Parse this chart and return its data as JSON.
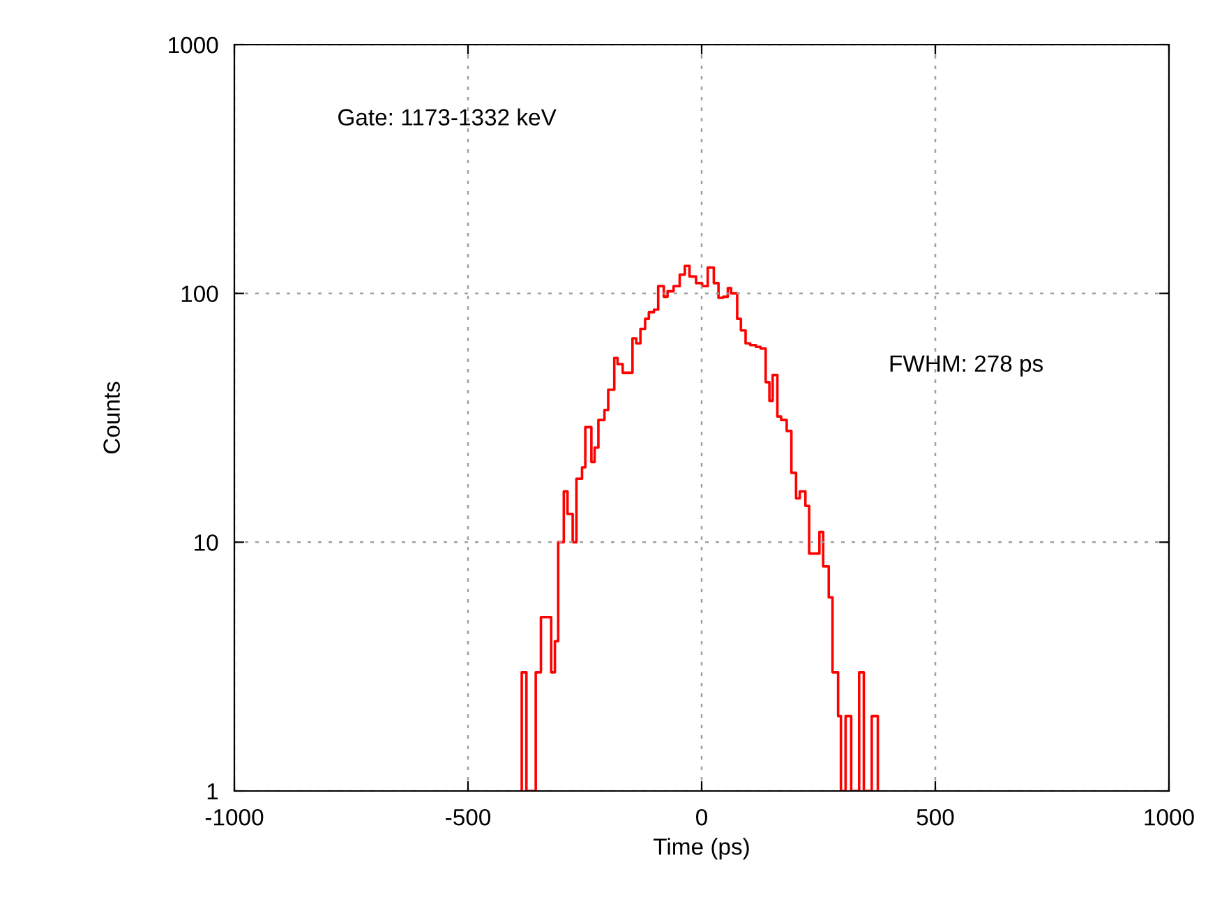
{
  "chart_data": {
    "type": "histogram",
    "xlabel": "Time (ps)",
    "ylabel": "Counts",
    "annotations": [
      "Gate: 1173-1332 keV",
      "FWHM: 278 ps"
    ],
    "bins": [
      -385,
      -375,
      -355,
      -344,
      -322,
      -314,
      -307,
      -295,
      -287,
      -276,
      -268,
      -256,
      -249,
      -236,
      -229,
      -221,
      -208,
      -200,
      -187,
      -180,
      -169,
      -148,
      -140,
      -131,
      -121,
      -113,
      -102,
      -93,
      -81,
      -73,
      -60,
      -47,
      -36,
      -26,
      -12,
      1,
      13,
      26,
      36,
      46,
      56,
      63,
      76,
      84,
      94,
      104,
      116,
      126,
      137,
      145,
      152,
      162,
      170,
      182,
      192,
      202,
      210,
      222,
      230,
      252,
      260,
      272,
      280,
      292,
      298,
      308,
      320,
      337,
      347,
      364,
      377
    ],
    "values": [
      3,
      1,
      3,
      5,
      3,
      4,
      10,
      16,
      13,
      10,
      18,
      20,
      29,
      21,
      24,
      31,
      34,
      41,
      55,
      52,
      48,
      66,
      63,
      72,
      79,
      84,
      86,
      107,
      97,
      102,
      107,
      119,
      129,
      117,
      110,
      107,
      127,
      110,
      96,
      97,
      105,
      100,
      79,
      71,
      63,
      62,
      61,
      60,
      44,
      37,
      47,
      32,
      31,
      28,
      19,
      15,
      16,
      14,
      9,
      11,
      8,
      6,
      3,
      2,
      1,
      2,
      1,
      3,
      1,
      2
    ],
    "color": "#ff0000",
    "xlim": [
      -1000,
      1000
    ],
    "xticks": [
      -1000,
      -500,
      0,
      500,
      1000
    ],
    "ylim": [
      1,
      1000
    ],
    "yticks": [
      1,
      10,
      100,
      1000
    ],
    "log": "y",
    "grid": true,
    "legend": false
  }
}
